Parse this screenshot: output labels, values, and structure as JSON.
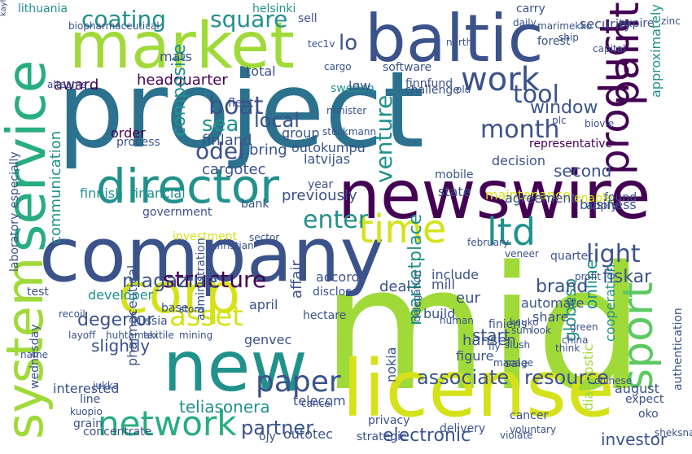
{
  "palette": {
    "dark_purple": "#440154",
    "indigo": "#3b528b",
    "teal": "#2c728e",
    "green_teal": "#21918c",
    "green": "#27ad81",
    "lime": "#5ec962",
    "yellow_green": "#a0da39",
    "yellow": "#d5e21a"
  },
  "words": [
    "project",
    "mid",
    "newswire",
    "baltic",
    "company",
    "market",
    "service",
    "license",
    "new",
    "system",
    "corp",
    "director",
    "network",
    "time",
    "ltd",
    "product",
    "paint",
    "sport",
    "work",
    "asset",
    "paper",
    "month",
    "structure",
    "enter",
    "light",
    "magazine",
    "venture",
    "tool",
    "boat",
    "coating",
    "square",
    "associate",
    "resource",
    "marketplace",
    "window",
    "sea",
    "headquarter",
    "award",
    "composite",
    "finland",
    "communication",
    "globeso",
    "online",
    "second",
    "partner",
    "diagnostic",
    "cooperation",
    "finnish",
    "financial",
    "government",
    "fiskar",
    "representative",
    "decision",
    "lo",
    "teliasonera",
    "automate",
    "mats",
    "odel",
    "local",
    "bring",
    "cargotec",
    "outokumpu",
    "latvijas",
    "group",
    "year",
    "previously",
    "investment",
    "state",
    "maintenance",
    "agreement",
    "enable",
    "business",
    "degerfor",
    "pharmaceutical",
    "slightly",
    "figure",
    "telecom",
    "outotec",
    "electronic",
    "investor",
    "nokia",
    "delivery",
    "brand",
    "share",
    "start",
    "build",
    "finieris",
    "eur",
    "include",
    "quarter",
    "accord",
    "disclose",
    "april",
    "developer",
    "base",
    "mobile",
    "lithuania",
    "helsinki",
    "sweden",
    "total",
    "minister",
    "software",
    "low",
    "finnfund",
    "challenge",
    "order",
    "process",
    "fleet",
    "kauko",
    "sale",
    "hansen",
    "genvec",
    "privacy",
    "interested",
    "line",
    "wednesday",
    "grain",
    "concentrate",
    "strategic",
    "ojy",
    "apply",
    "found",
    "biopharmaceutical",
    "security",
    "expire",
    "approximately",
    "carry",
    "sell",
    "plc",
    "bank",
    "mill",
    "test",
    "deal",
    "affair",
    "administration",
    "russia",
    "stora",
    "daily",
    "chinese",
    "sum",
    "look",
    "green",
    "august",
    "expect",
    "oko",
    "cancer",
    "voluntary",
    "violate",
    "authentication",
    "laboratory",
    "especially",
    "name",
    "hectare",
    "february",
    "christian",
    "layoff",
    "huhtamaki",
    "textile",
    "mining",
    "kuopio",
    "jukka",
    "sheksna",
    "human",
    "profit",
    "tec1v",
    "biovie",
    "old",
    "alteams",
    "kayhajoki",
    "recoil",
    "veneer",
    "cargo",
    "slush",
    "fly",
    "think",
    "china",
    "cancel",
    "sector",
    "stockmann",
    "north",
    "marimekko",
    "ship",
    "capital",
    "delegation",
    "manage",
    "forest",
    "zinc"
  ]
}
